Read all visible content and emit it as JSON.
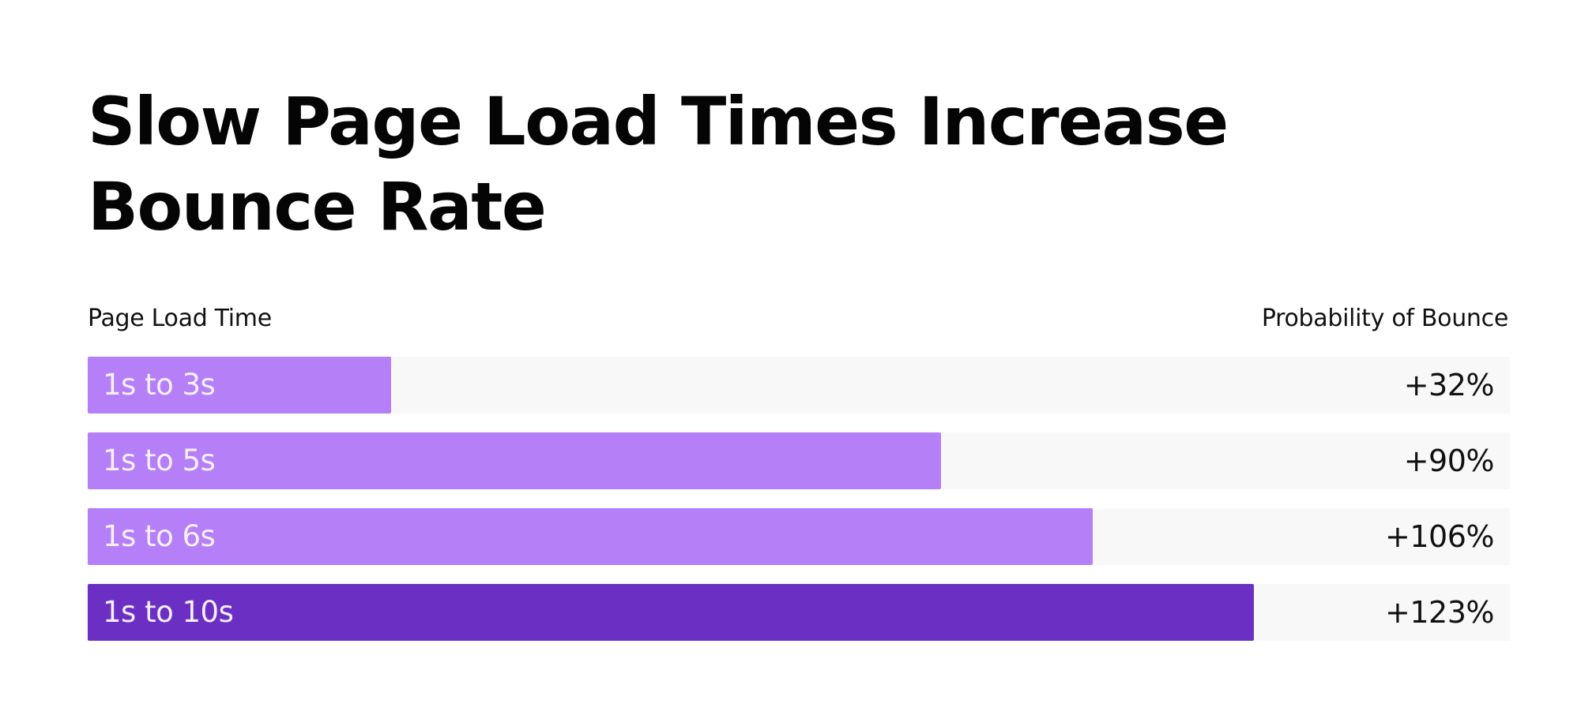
{
  "chart_data": {
    "type": "bar",
    "orientation": "horizontal",
    "title": "Slow Page Load Times Increase Bounce Rate",
    "xlabel": "Probability of Bounce",
    "ylabel": "Page Load Time",
    "categories": [
      "1s to 3s",
      "1s to 5s",
      "1s to 6s",
      "1s to 10s"
    ],
    "values": [
      32,
      90,
      106,
      123
    ],
    "value_labels": [
      "+32%",
      "+90%",
      "+106%",
      "+123%"
    ],
    "unit": "%",
    "xlim": [
      0,
      150
    ],
    "grid": false,
    "legend": "none",
    "colors": {
      "bar": "#b57ff7",
      "highlight": "#6b2fc4",
      "track": "#f8f8f8"
    },
    "highlight_index": 3
  }
}
